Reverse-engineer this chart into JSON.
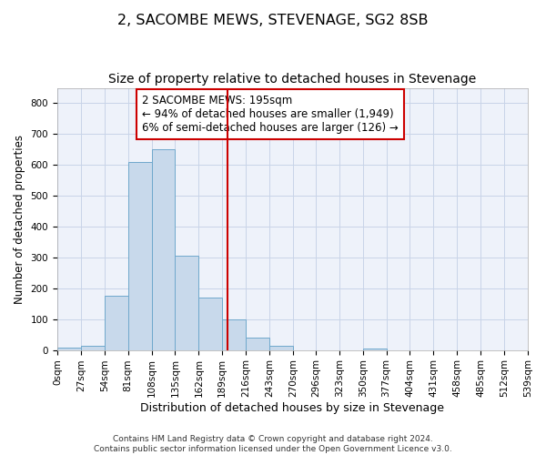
{
  "title": "2, SACOMBE MEWS, STEVENAGE, SG2 8SB",
  "subtitle": "Size of property relative to detached houses in Stevenage",
  "xlabel": "Distribution of detached houses by size in Stevenage",
  "ylabel": "Number of detached properties",
  "bar_edges": [
    0,
    27,
    54,
    81,
    108,
    135,
    162,
    189,
    216,
    243,
    270,
    296,
    323,
    350,
    377,
    404,
    431,
    458,
    485,
    512,
    539
  ],
  "bar_heights": [
    7,
    14,
    175,
    610,
    650,
    305,
    170,
    100,
    40,
    14,
    0,
    0,
    0,
    5,
    0,
    0,
    0,
    0,
    0,
    0
  ],
  "bar_color": "#c8d9eb",
  "bar_edgecolor": "#6fa8cc",
  "vline_x": 195,
  "vline_color": "#cc0000",
  "annotation_text": "2 SACOMBE MEWS: 195sqm\n← 94% of detached houses are smaller (1,949)\n6% of semi-detached houses are larger (126) →",
  "ylim": [
    0,
    850
  ],
  "yticks": [
    0,
    100,
    200,
    300,
    400,
    500,
    600,
    700,
    800
  ],
  "grid_color": "#c8d4e8",
  "background_color": "#eef2fa",
  "footer_text": "Contains HM Land Registry data © Crown copyright and database right 2024.\nContains public sector information licensed under the Open Government Licence v3.0.",
  "title_fontsize": 11.5,
  "subtitle_fontsize": 10,
  "xlabel_fontsize": 9,
  "ylabel_fontsize": 8.5,
  "tick_fontsize": 7.5,
  "annotation_fontsize": 8.5,
  "footer_fontsize": 6.5
}
